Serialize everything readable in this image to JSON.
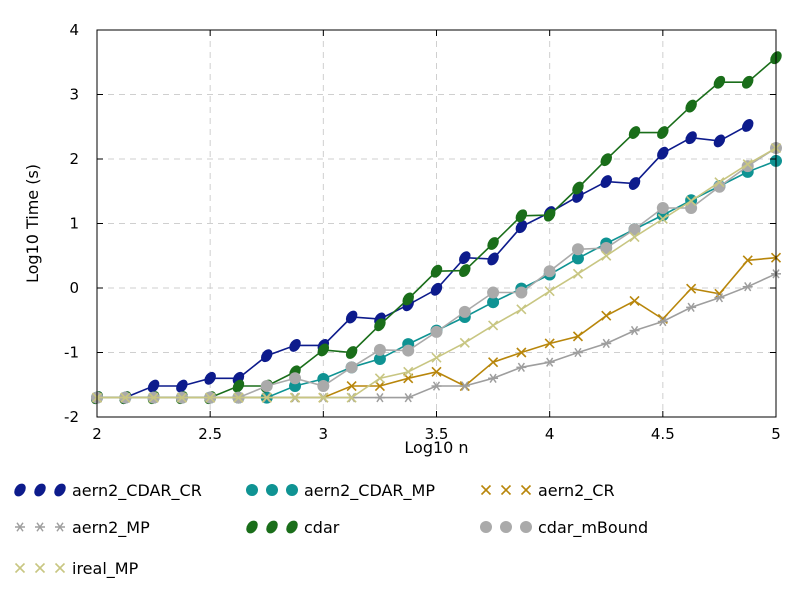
{
  "chart_data": {
    "type": "line",
    "xlabel": "Log10 n",
    "ylabel": "Log10 Time (s)",
    "xlim": [
      2,
      5
    ],
    "ylim": [
      -2,
      4
    ],
    "xticks": [
      "2",
      "2.5",
      "3",
      "3.5",
      "4",
      "4.5",
      "5"
    ],
    "yticks": [
      "-2",
      "-1",
      "0",
      "1",
      "2",
      "3",
      "4"
    ],
    "grid": true,
    "legend_position": "bottom",
    "series": [
      {
        "name": "aern2_CDAR_CR",
        "color": "#0d1b8c",
        "marker": "ellipse",
        "x": [
          2,
          2.125,
          2.25,
          2.375,
          2.5,
          2.625,
          2.75,
          2.875,
          3,
          3.125,
          3.25,
          3.375,
          3.5,
          3.625,
          3.75,
          3.875,
          4,
          4.125,
          4.25,
          4.375,
          4.5,
          4.625,
          4.75,
          4.875
        ],
        "y": [
          -1.7,
          -1.7,
          -1.52,
          -1.52,
          -1.4,
          -1.4,
          -1.05,
          -0.89,
          -0.89,
          -0.45,
          -0.48,
          -0.26,
          -0.02,
          0.47,
          0.45,
          0.95,
          1.17,
          1.42,
          1.65,
          1.62,
          2.09,
          2.33,
          2.28,
          2.52
        ]
      },
      {
        "name": "aern2_CDAR_MP",
        "color": "#0f9393",
        "marker": "circle",
        "x": [
          2,
          2.125,
          2.25,
          2.375,
          2.5,
          2.625,
          2.75,
          2.875,
          3,
          3.125,
          3.25,
          3.375,
          3.5,
          3.625,
          3.75,
          3.875,
          4,
          4.125,
          4.25,
          4.375,
          4.5,
          4.625,
          4.75,
          4.875,
          5
        ],
        "y": [
          -1.7,
          -1.7,
          -1.7,
          -1.7,
          -1.7,
          -1.7,
          -1.7,
          -1.52,
          -1.41,
          -1.23,
          -1.1,
          -0.87,
          -0.66,
          -0.45,
          -0.22,
          -0.01,
          0.21,
          0.46,
          0.69,
          0.91,
          1.13,
          1.36,
          1.58,
          1.8,
          1.97
        ]
      },
      {
        "name": "aern2_CR",
        "color": "#b8860b",
        "marker": "x",
        "x": [
          2,
          2.125,
          2.25,
          2.375,
          2.5,
          2.625,
          2.75,
          2.875,
          3,
          3.125,
          3.25,
          3.375,
          3.5,
          3.625,
          3.75,
          3.875,
          4,
          4.125,
          4.25,
          4.375,
          4.5,
          4.625,
          4.75,
          4.875,
          5
        ],
        "y": [
          -1.7,
          -1.7,
          -1.7,
          -1.7,
          -1.7,
          -1.7,
          -1.7,
          -1.7,
          -1.7,
          -1.52,
          -1.52,
          -1.4,
          -1.3,
          -1.52,
          -1.15,
          -1.0,
          -0.86,
          -0.75,
          -0.43,
          -0.2,
          -0.48,
          -0.01,
          -0.09,
          0.43,
          0.47
        ]
      },
      {
        "name": "aern2_MP",
        "color": "#9e9e9e",
        "marker": "asterisk",
        "x": [
          2,
          2.125,
          2.25,
          2.375,
          2.5,
          2.625,
          2.75,
          2.875,
          3,
          3.125,
          3.25,
          3.375,
          3.5,
          3.625,
          3.75,
          3.875,
          4,
          4.125,
          4.25,
          4.375,
          4.5,
          4.625,
          4.75,
          4.875,
          5
        ],
        "y": [
          -1.7,
          -1.7,
          -1.7,
          -1.7,
          -1.7,
          -1.7,
          -1.7,
          -1.7,
          -1.7,
          -1.7,
          -1.7,
          -1.7,
          -1.52,
          -1.52,
          -1.4,
          -1.23,
          -1.15,
          -1.0,
          -0.86,
          -0.66,
          -0.52,
          -0.3,
          -0.15,
          0.02,
          0.22
        ]
      },
      {
        "name": "cdar",
        "color": "#1a6e1a",
        "marker": "ellipse",
        "x": [
          2,
          2.125,
          2.25,
          2.375,
          2.5,
          2.625,
          2.75,
          2.875,
          3,
          3.125,
          3.25,
          3.375,
          3.5,
          3.625,
          3.75,
          3.875,
          4,
          4.125,
          4.25,
          4.375,
          4.5,
          4.625,
          4.75,
          4.875,
          5
        ],
        "y": [
          -1.7,
          -1.7,
          -1.7,
          -1.7,
          -1.7,
          -1.52,
          -1.52,
          -1.3,
          -0.96,
          -1.0,
          -0.57,
          -0.17,
          0.26,
          0.27,
          0.69,
          1.12,
          1.13,
          1.55,
          1.99,
          2.41,
          2.41,
          2.82,
          3.19,
          3.19,
          3.57
        ]
      },
      {
        "name": "cdar_mBound",
        "color": "#aaaaaa",
        "marker": "circle",
        "x": [
          2,
          2.125,
          2.25,
          2.375,
          2.5,
          2.625,
          2.75,
          2.875,
          3,
          3.125,
          3.25,
          3.375,
          3.5,
          3.625,
          3.75,
          3.875,
          4,
          4.125,
          4.25,
          4.375,
          4.5,
          4.625,
          4.75,
          4.875,
          5
        ],
        "y": [
          -1.7,
          -1.7,
          -1.7,
          -1.7,
          -1.7,
          -1.7,
          -1.52,
          -1.4,
          -1.52,
          -1.23,
          -0.96,
          -0.97,
          -0.68,
          -0.37,
          -0.07,
          -0.07,
          0.26,
          0.6,
          0.62,
          0.91,
          1.24,
          1.24,
          1.57,
          1.89,
          2.17
        ]
      },
      {
        "name": "ireal_MP",
        "color": "#c8c682",
        "marker": "x",
        "x": [
          2,
          2.125,
          2.25,
          2.375,
          2.5,
          2.625,
          2.75,
          2.875,
          3,
          3.125,
          3.25,
          3.375,
          3.5,
          3.625,
          3.75,
          3.875,
          4,
          4.125,
          4.25,
          4.375,
          4.5,
          4.625,
          4.75,
          4.875,
          5
        ],
        "y": [
          -1.7,
          -1.7,
          -1.7,
          -1.7,
          -1.7,
          -1.7,
          -1.7,
          -1.7,
          -1.7,
          -1.7,
          -1.4,
          -1.3,
          -1.08,
          -0.85,
          -0.58,
          -0.33,
          -0.05,
          0.22,
          0.5,
          0.79,
          1.07,
          1.35,
          1.64,
          1.92,
          2.17
        ]
      }
    ]
  }
}
